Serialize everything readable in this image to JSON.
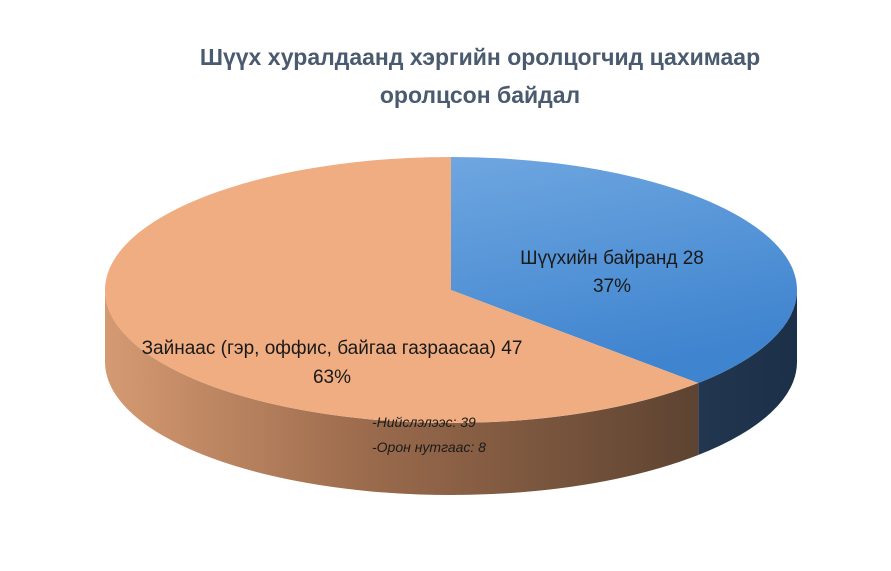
{
  "chart_data": {
    "type": "pie",
    "title_lines": [
      "Шүүх хуралдаанд хэргийн оролцогчид цахимаар",
      "оролцсон байдал"
    ],
    "slices": [
      {
        "label": "Шүүхийн байранд",
        "value": 28,
        "percent": "37%",
        "color": "#4a8fd4"
      },
      {
        "label": "Зайнаас (гэр, оффис, байгаа газраасаа)",
        "value": 47,
        "percent": "63%",
        "color": "#f0ad82"
      }
    ],
    "annotations": [
      "-Нийслэлээс: 39",
      "-Орон нутгаас: 8"
    ],
    "style": "3d-pie"
  }
}
